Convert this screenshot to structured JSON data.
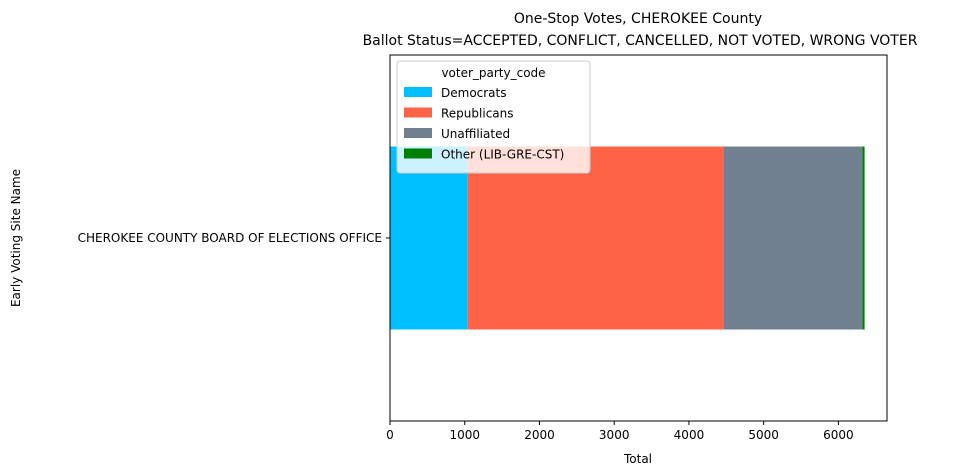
{
  "chart_data": {
    "type": "bar",
    "orientation": "horizontal",
    "stacked": true,
    "title": "One-Stop Votes, CHEROKEE County",
    "subtitle": "Ballot Status=ACCEPTED, CONFLICT, CANCELLED, NOT VOTED, WRONG VOTER",
    "xlabel": "Total",
    "ylabel": "Early Voting Site Name",
    "categories": [
      "CHEROKEE COUNTY BOARD OF ELECTIONS OFFICE"
    ],
    "xlim": [
      0,
      6650
    ],
    "xticks": [
      0,
      1000,
      2000,
      3000,
      4000,
      5000,
      6000
    ],
    "grid": false,
    "legend": {
      "title": "voter_party_code",
      "placement": "upper-left"
    },
    "series": [
      {
        "name": "Democrats",
        "color": "#00bfff",
        "values": [
          1040
        ]
      },
      {
        "name": "Republicans",
        "color": "#ff6347",
        "values": [
          3420
        ]
      },
      {
        "name": "Unaffiliated",
        "color": "#708090",
        "values": [
          1860
        ]
      },
      {
        "name": "Other (LIB-GRE-CST)",
        "color": "#008000",
        "values": [
          30
        ]
      }
    ]
  }
}
